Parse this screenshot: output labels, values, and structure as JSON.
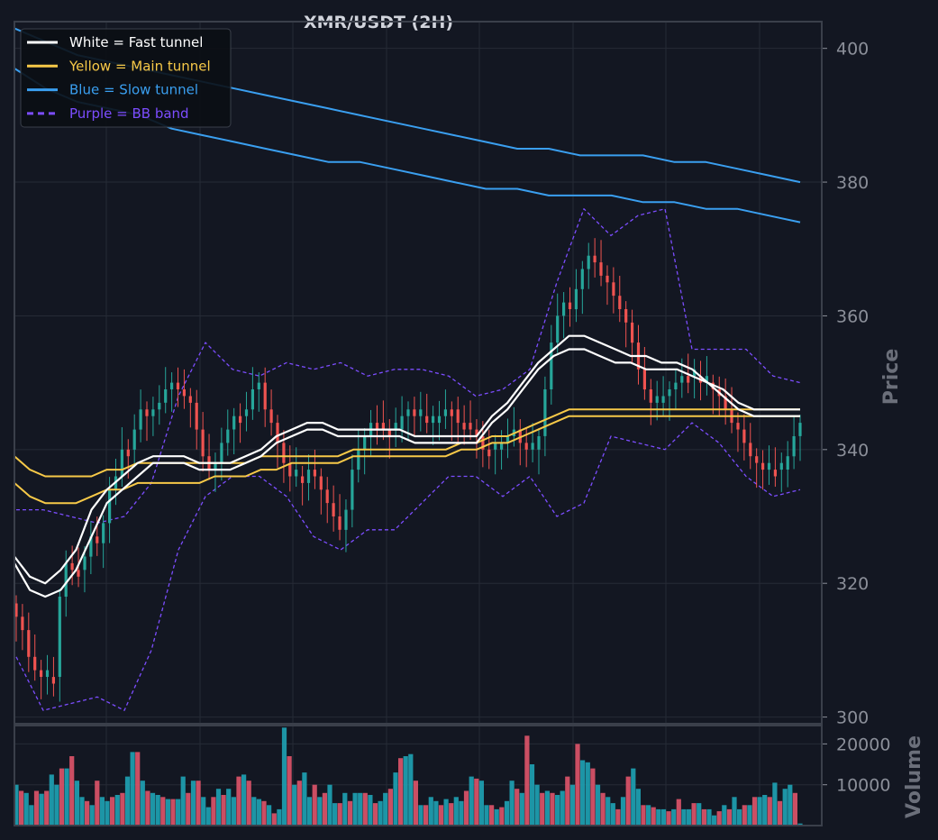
{
  "chart_data": [
    {
      "type": "line",
      "title": "XMR/USDT (2H)",
      "ylabel": "Price",
      "ylim": [
        299,
        404
      ],
      "yticks": [
        300,
        320,
        340,
        360,
        380,
        400
      ],
      "grid": true,
      "legend_position": "top-left",
      "legend": [
        {
          "label": "White = Fast tunnel",
          "color": "#ffffff",
          "dash": false
        },
        {
          "label": "Yellow = Main tunnel",
          "color": "#f7c948",
          "dash": false
        },
        {
          "label": "Blue = Slow tunnel",
          "color": "#3a9ff0",
          "dash": false
        },
        {
          "label": "Purple = BB band",
          "color": "#7c4dff",
          "dash": true
        }
      ],
      "candles_close": [
        315,
        313,
        309,
        307,
        306,
        306,
        306,
        318,
        323,
        322,
        322,
        324,
        327,
        326,
        329,
        334,
        336,
        340,
        340,
        343,
        346,
        345,
        346,
        347,
        349,
        350,
        349,
        348,
        347,
        343,
        339,
        337,
        338,
        341,
        343,
        345,
        345,
        346,
        349,
        350,
        346,
        344,
        341,
        338,
        336,
        336,
        335,
        337,
        336,
        334,
        332,
        330,
        328,
        331,
        337,
        340,
        342,
        344,
        344,
        343,
        343,
        343,
        345,
        346,
        345,
        345,
        344,
        344,
        345,
        346,
        346,
        344,
        344,
        343,
        342,
        340,
        340,
        340,
        341,
        342,
        343,
        341,
        340,
        340,
        342,
        349,
        356,
        360,
        362,
        361,
        364,
        367,
        369,
        368,
        366,
        365,
        363,
        361,
        359,
        356,
        352,
        349,
        347,
        347,
        348,
        349,
        350,
        351,
        351,
        351,
        350,
        350,
        349,
        348,
        346,
        344,
        343,
        341,
        339,
        338,
        337,
        337,
        337,
        337,
        339,
        342,
        344
      ],
      "fast_tunnel": {
        "upper": [
          324,
          321,
          320,
          322,
          325,
          331,
          334,
          336,
          338,
          339,
          339,
          339,
          338,
          338,
          338,
          339,
          340,
          342,
          343,
          344,
          344,
          343,
          343,
          343,
          343,
          343,
          342,
          342,
          342,
          342,
          342,
          345,
          347,
          350,
          353,
          355,
          357,
          357,
          356,
          355,
          354,
          354,
          353,
          353,
          352,
          350,
          349,
          347,
          346,
          346,
          346,
          346
        ],
        "lower": [
          323,
          319,
          318,
          319,
          322,
          327,
          332,
          334,
          336,
          338,
          338,
          338,
          337,
          337,
          337,
          338,
          339,
          341,
          342,
          343,
          343,
          342,
          342,
          342,
          342,
          342,
          341,
          341,
          341,
          341,
          341,
          344,
          346,
          349,
          352,
          354,
          355,
          355,
          354,
          353,
          353,
          352,
          352,
          352,
          351,
          350,
          348,
          346,
          345,
          345,
          345,
          345
        ]
      },
      "main_tunnel": {
        "upper": [
          339,
          337,
          336,
          336,
          336,
          336,
          337,
          337,
          338,
          338,
          338,
          338,
          338,
          338,
          338,
          338,
          339,
          339,
          339,
          339,
          339,
          339,
          340,
          340,
          340,
          340,
          340,
          340,
          340,
          341,
          341,
          342,
          342,
          343,
          344,
          345,
          346,
          346,
          346,
          346,
          346,
          346,
          346,
          346,
          346,
          346,
          346,
          346,
          346,
          346,
          346,
          346
        ],
        "lower": [
          335,
          333,
          332,
          332,
          332,
          333,
          334,
          334,
          335,
          335,
          335,
          335,
          335,
          336,
          336,
          336,
          337,
          337,
          338,
          338,
          338,
          338,
          339,
          339,
          339,
          339,
          339,
          339,
          339,
          340,
          340,
          341,
          341,
          342,
          343,
          344,
          345,
          345,
          345,
          345,
          345,
          345,
          345,
          345,
          345,
          345,
          345,
          345,
          345,
          345,
          345,
          345
        ]
      },
      "slow_tunnel": {
        "upper": [
          403,
          401,
          399,
          398,
          397,
          396,
          395,
          394,
          393,
          392,
          391,
          390,
          389,
          388,
          387,
          386,
          385,
          385,
          384,
          384,
          384,
          383,
          383,
          382,
          381,
          380
        ],
        "lower": [
          397,
          394,
          392,
          391,
          390,
          388,
          387,
          386,
          385,
          384,
          383,
          383,
          382,
          381,
          380,
          379,
          379,
          378,
          378,
          378,
          377,
          377,
          376,
          376,
          375,
          374
        ]
      },
      "bb_band": {
        "upper": [
          331,
          331,
          330,
          329,
          330,
          335,
          348,
          356,
          352,
          351,
          353,
          352,
          353,
          351,
          352,
          352,
          351,
          348,
          349,
          352,
          365,
          376,
          372,
          375,
          376,
          355,
          355,
          355,
          351,
          350
        ],
        "lower": [
          309,
          301,
          302,
          303,
          301,
          310,
          325,
          333,
          336,
          336,
          333,
          327,
          325,
          328,
          328,
          332,
          336,
          336,
          333,
          336,
          330,
          332,
          342,
          341,
          340,
          344,
          341,
          336,
          333,
          334
        ]
      }
    },
    {
      "type": "bar",
      "ylabel": "Volume",
      "ylim": [
        0,
        24500
      ],
      "yticks": [
        10000,
        20000
      ],
      "values": [
        10000,
        8500,
        8000,
        5000,
        8500,
        7800,
        8500,
        12500,
        10000,
        14000,
        14000,
        17000,
        11000,
        7000,
        6000,
        5000,
        11000,
        7000,
        6000,
        7000,
        7500,
        8000,
        12000,
        18000,
        18000,
        11000,
        8500,
        8000,
        7500,
        7000,
        6500,
        6500,
        6500,
        12000,
        8000,
        11000,
        11000,
        7000,
        4500,
        7000,
        9000,
        7500,
        9000,
        7000,
        12000,
        12500,
        11000,
        7000,
        6500,
        6000,
        5000,
        3000,
        4000,
        24000,
        17000,
        10000,
        11000,
        13000,
        7000,
        10000,
        7000,
        8000,
        10000,
        5500,
        5500,
        8000,
        6000,
        8000,
        8000,
        8000,
        7500,
        5500,
        6000,
        8000,
        9000,
        13000,
        16500,
        17000,
        17500,
        11000,
        5000,
        5000,
        7000,
        6000,
        5000,
        6500,
        5500,
        7000,
        6000,
        8500,
        12000,
        11500,
        11000,
        5000,
        5000,
        4000,
        4500,
        6000,
        11000,
        9000,
        8000,
        22000,
        15000,
        10000,
        8000,
        8500,
        8000,
        7500,
        8500,
        12000,
        10000,
        20000,
        16000,
        15500,
        14000,
        10000,
        8000,
        7000,
        5500,
        4000,
        7000,
        12000,
        14000,
        9000,
        5000,
        5000,
        4500,
        4000,
        4000,
        3500,
        4000,
        6500,
        4000,
        4000,
        5500,
        5500,
        4000,
        4000,
        2500,
        3500,
        5000,
        4000,
        7000,
        4000,
        5000,
        5000,
        7000,
        7000,
        7500,
        7000,
        10500,
        6000,
        9000,
        10000,
        8000,
        500
      ]
    }
  ]
}
